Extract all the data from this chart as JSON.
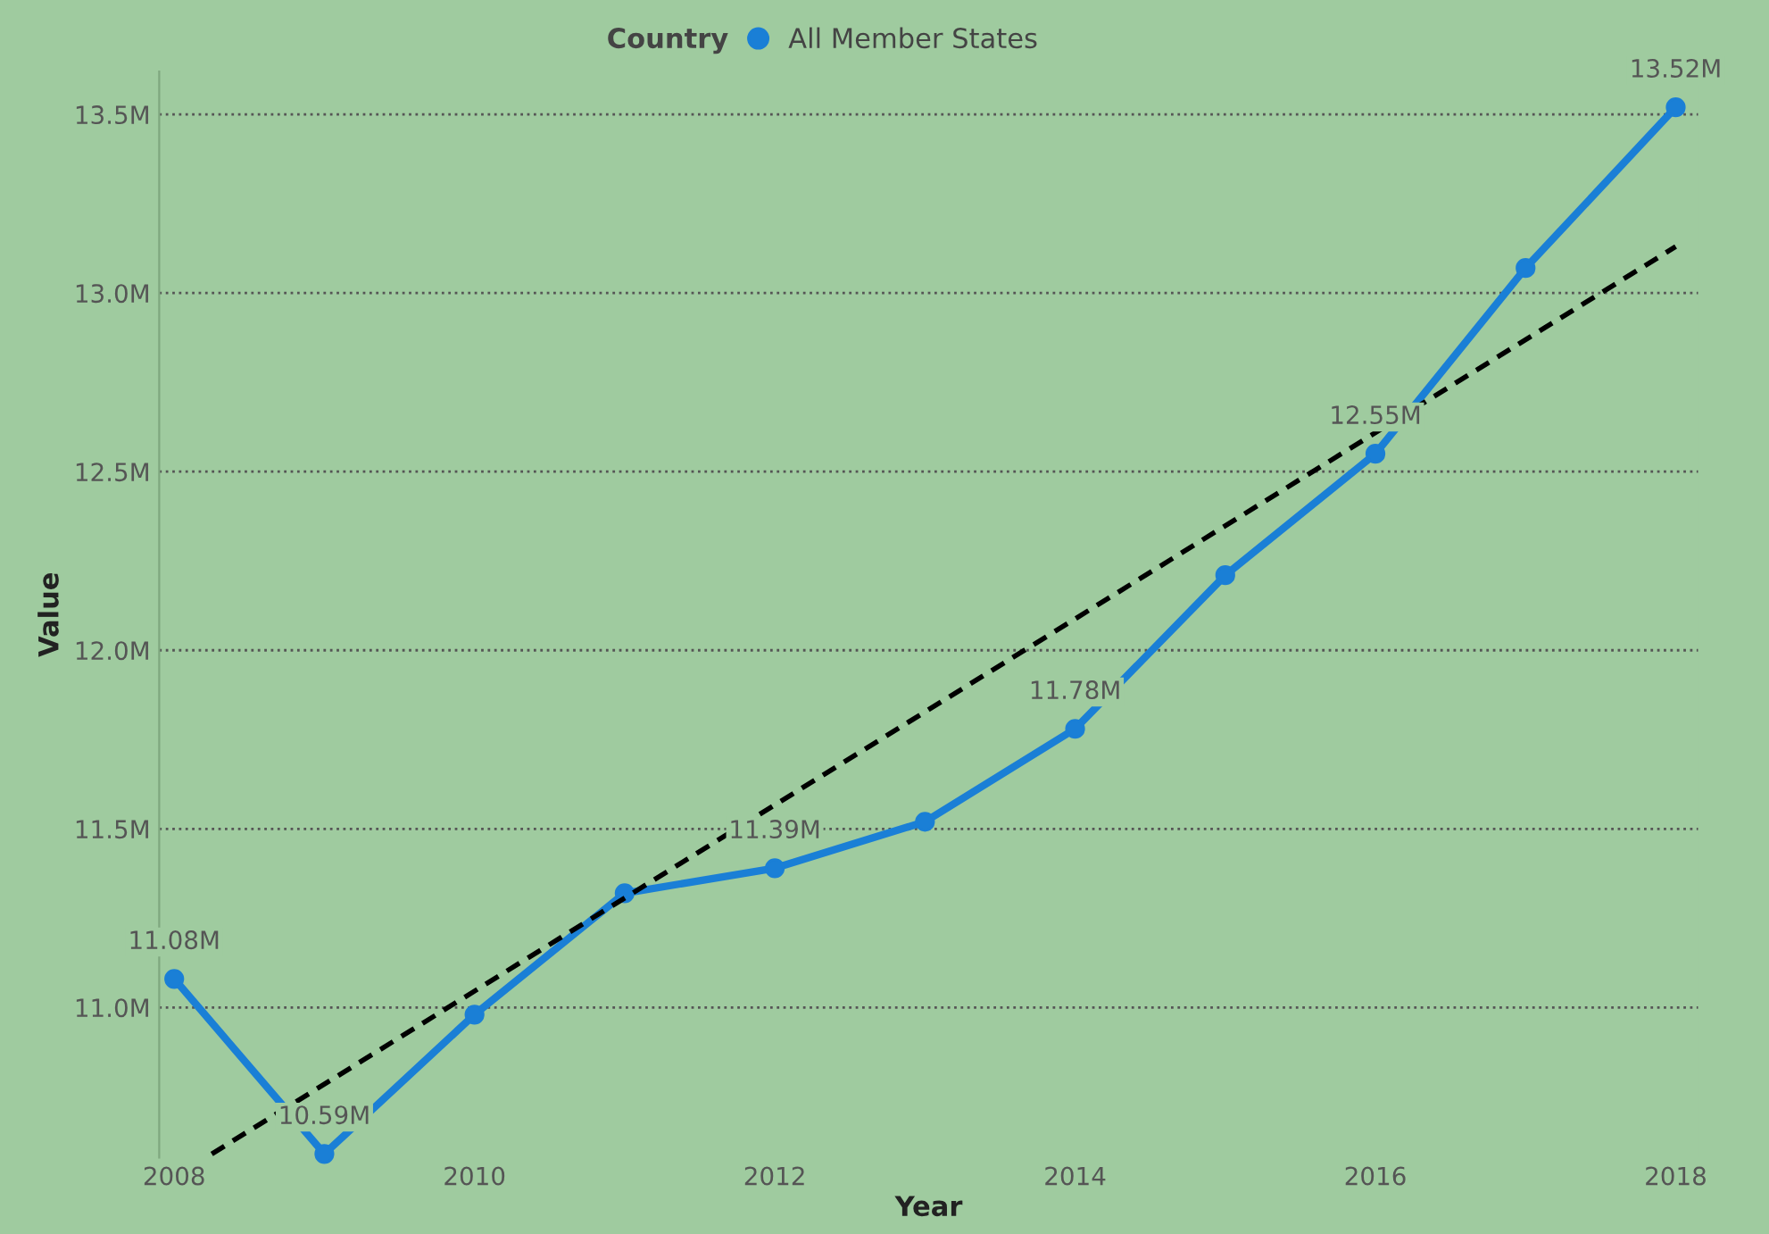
{
  "chart_data": {
    "type": "line",
    "xlabel": "Year",
    "ylabel": "Value",
    "legend_title": "Country",
    "x": [
      2008,
      2009,
      2010,
      2011,
      2012,
      2013,
      2014,
      2015,
      2016,
      2017,
      2018
    ],
    "series": [
      {
        "name": "All Member States",
        "color": "#1a7fd6",
        "values": [
          11.08,
          10.59,
          10.98,
          11.32,
          11.39,
          11.52,
          11.78,
          12.21,
          12.55,
          13.07,
          13.52
        ],
        "value_labels": [
          "11.08M",
          "10.59M",
          null,
          null,
          "11.39M",
          null,
          "11.78M",
          null,
          "12.55M",
          null,
          "13.52M"
        ]
      },
      {
        "type": "line",
        "color": "#000000",
        "line_style": "dashed",
        "marker": "none",
        "x": [
          2008.25,
          2018
        ],
        "values": [
          10.59,
          13.13
        ]
      }
    ],
    "xlim": [
      2007.9,
      2018.15
    ],
    "xticks": [
      2008,
      2010,
      2012,
      2014,
      2016,
      2018
    ],
    "ylim": [
      10.58,
      13.62
    ],
    "yticks": [
      {
        "value": 11.0,
        "label": "11.0M"
      },
      {
        "value": 11.5,
        "label": "11.5M"
      },
      {
        "value": 12.0,
        "label": "12.0M"
      },
      {
        "value": 12.5,
        "label": "12.5M"
      },
      {
        "value": 13.0,
        "label": "13.0M"
      },
      {
        "value": 13.5,
        "label": "13.5M"
      }
    ],
    "grid": "y",
    "legend": "top",
    "marker": "circle",
    "line_style": "solid"
  }
}
